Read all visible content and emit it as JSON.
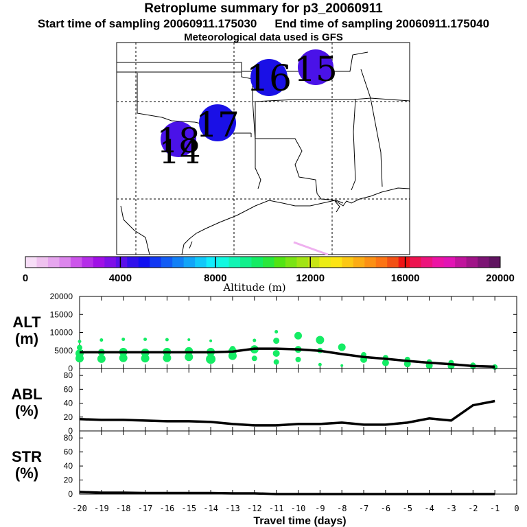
{
  "header": {
    "title": "Retroplume summary for p3_20060911",
    "start_label": "Start time of sampling 20060911.175030",
    "end_label": "End time of sampling 20060911.175040",
    "met_label": "Meteorological data used is GFS"
  },
  "map": {
    "plume_day_labels": [
      "16",
      "15",
      "17",
      "18",
      "14"
    ],
    "marker_color": "#1a10e6",
    "marker_color_alt": "#4a12e8"
  },
  "colorbar": {
    "tick_labels": [
      "0",
      "4000",
      "8000",
      "12000",
      "16000",
      "20000"
    ],
    "label": "Altitude (m)",
    "colors": [
      "#f7def7",
      "#efc2ef",
      "#e6a6ee",
      "#dc86ec",
      "#cc55ea",
      "#b52ee8",
      "#a010e6",
      "#7f10e8",
      "#5a10ea",
      "#3010ec",
      "#1010f0",
      "#1238f2",
      "#125cf4",
      "#1280f6",
      "#12a4f8",
      "#12c8fa",
      "#12ecfc",
      "#12f8e0",
      "#12f4b4",
      "#12f08c",
      "#14ec64",
      "#2ae83c",
      "#52e414",
      "#7ae414",
      "#a2e414",
      "#c8e414",
      "#ecec14",
      "#fce414",
      "#fcc814",
      "#fcac14",
      "#fc9014",
      "#fc7414",
      "#f25014",
      "#ee1414",
      "#ec1450",
      "#ec147c",
      "#ec14a4",
      "#e214b4",
      "#c0149c",
      "#a01488",
      "#7c1474",
      "#601460"
    ]
  },
  "chart_data": [
    {
      "type": "scatter",
      "panel": "ALT",
      "ylabel": "ALT\n(m)",
      "ylabel_line1": "ALT",
      "ylabel_line2": "(m)",
      "ylim": [
        0,
        20000
      ],
      "yticks": [
        "0",
        "5000",
        "10000",
        "15000",
        "20000"
      ],
      "xlim": [
        -20,
        0
      ],
      "mean_line": {
        "x": [
          -20,
          -19,
          -18,
          -17,
          -16,
          -15,
          -14,
          -13,
          -12,
          -11,
          -10,
          -9,
          -8,
          -7,
          -6,
          -5,
          -4,
          -3,
          -2,
          -1
        ],
        "y": [
          4500,
          4500,
          4500,
          4500,
          4500,
          4500,
          4500,
          4700,
          5500,
          5500,
          5300,
          4900,
          4000,
          3200,
          2700,
          2100,
          1600,
          1200,
          700,
          500
        ]
      },
      "points": {
        "x": [
          -20,
          -20,
          -20,
          -20,
          -19,
          -19,
          -19,
          -18,
          -18,
          -18,
          -17,
          -17,
          -17,
          -16,
          -16,
          -16,
          -15,
          -15,
          -15,
          -14,
          -14,
          -14,
          -13,
          -13,
          -13,
          -12,
          -12,
          -12,
          -11,
          -11,
          -11,
          -11,
          -10,
          -10,
          -10,
          -9,
          -9,
          -9,
          -8,
          -8,
          -7,
          -7,
          -6,
          -6,
          -5,
          -5,
          -4,
          -4,
          -3,
          -3,
          -2,
          -2,
          -1
        ],
        "y": [
          2800,
          4200,
          5800,
          7500,
          2700,
          4500,
          7900,
          2900,
          4600,
          8100,
          2800,
          4400,
          8100,
          2900,
          4600,
          8000,
          3200,
          4800,
          8000,
          2600,
          4600,
          7700,
          3500,
          4800,
          5500,
          2800,
          5300,
          7800,
          1800,
          4200,
          7700,
          10200,
          2500,
          5300,
          9100,
          1100,
          5000,
          7900,
          800,
          5900,
          2500,
          3800,
          1600,
          3000,
          1300,
          2500,
          800,
          1800,
          700,
          1600,
          500,
          900,
          400
        ],
        "r": [
          6,
          6,
          4,
          2.5,
          6,
          5,
          2.5,
          6,
          6,
          2.5,
          6,
          6,
          2.5,
          6,
          6,
          2.5,
          6,
          6,
          2,
          7,
          6,
          2,
          6,
          6,
          4,
          4,
          6,
          2.5,
          4,
          5,
          4.5,
          2.5,
          4,
          5,
          5.5,
          2.5,
          4,
          6,
          2,
          5.5,
          5,
          4,
          5,
          4,
          5,
          4,
          5,
          4,
          5,
          4,
          4,
          4,
          4
        ]
      },
      "point_color": "#14ec64"
    },
    {
      "type": "line",
      "panel": "ABL",
      "ylabel_line1": "ABL",
      "ylabel_line2": "(%)",
      "ylim": [
        0,
        90
      ],
      "yticks": [
        "0",
        "20",
        "40",
        "60",
        "80"
      ],
      "xlim": [
        -20,
        0
      ],
      "x": [
        -20,
        -19,
        -18,
        -17,
        -16,
        -15,
        -14,
        -13,
        -12,
        -11,
        -10,
        -9,
        -8,
        -7,
        -6,
        -5,
        -4,
        -3,
        -2,
        -1
      ],
      "y": [
        17,
        16,
        16,
        15,
        14,
        14,
        13,
        10,
        8,
        8,
        10,
        10,
        12,
        9,
        9,
        12,
        18,
        15,
        37,
        43
      ]
    },
    {
      "type": "line",
      "panel": "STR",
      "ylabel_line1": "STR",
      "ylabel_line2": "(%)",
      "ylim": [
        0,
        90
      ],
      "yticks": [
        "0",
        "20",
        "40",
        "60",
        "80"
      ],
      "xlim": [
        -20,
        0
      ],
      "x": [
        -20,
        -19,
        -18,
        -17,
        -16,
        -15,
        -14,
        -13,
        -12,
        -11,
        -10,
        -9,
        -8,
        -7,
        -6,
        -5,
        -4,
        -3,
        -2,
        -1
      ],
      "y": [
        3,
        2,
        2,
        1.5,
        1.5,
        1.5,
        1.5,
        1,
        1,
        0,
        0,
        0,
        0,
        0,
        0,
        0,
        0,
        0,
        0,
        0
      ]
    }
  ],
  "xaxis": {
    "tick_labels": [
      "-20",
      "-19",
      "-18",
      "-17",
      "-16",
      "-15",
      "-14",
      "-13",
      "-12",
      "-11",
      "-10",
      "-9",
      "-8",
      "-7",
      "-6",
      "-5",
      "-4",
      "-3",
      "-2",
      "-1",
      "0"
    ],
    "label": "Travel time (days)"
  }
}
